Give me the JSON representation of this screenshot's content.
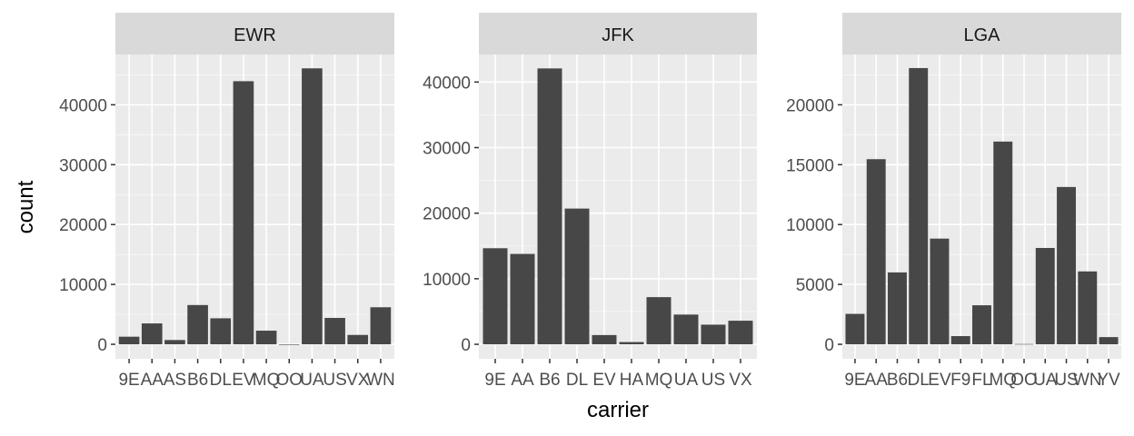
{
  "figure": {
    "xlabel": "carrier",
    "ylabel": "count"
  },
  "colors": {
    "bar": "#474747",
    "panel_bg": "#ebebeb",
    "strip_bg": "#d9d9d9",
    "grid_major": "#ffffff",
    "text": "#1a1a1a",
    "tick_text": "#4d4d4d"
  },
  "chart_data": [
    {
      "type": "bar",
      "facet": "EWR",
      "categories": [
        "9E",
        "AA",
        "AS",
        "B6",
        "DL",
        "EV",
        "MQ",
        "OO",
        "UA",
        "US",
        "VX",
        "WN"
      ],
      "values": [
        1268,
        3487,
        714,
        6557,
        4342,
        43939,
        2276,
        6,
        46087,
        4405,
        1566,
        6188
      ],
      "ylim": [
        0,
        48400
      ],
      "yticks": [
        0,
        10000,
        20000,
        30000,
        40000
      ],
      "ytick_labels": [
        "0",
        "10000",
        "20000",
        "30000",
        "40000"
      ]
    },
    {
      "type": "bar",
      "facet": "JFK",
      "categories": [
        "9E",
        "AA",
        "B6",
        "DL",
        "EV",
        "HA",
        "MQ",
        "UA",
        "US",
        "VX"
      ],
      "values": [
        14651,
        13783,
        42076,
        20701,
        1408,
        342,
        7193,
        4534,
        2995,
        3596
      ],
      "ylim": [
        0,
        44200
      ],
      "yticks": [
        0,
        10000,
        20000,
        30000,
        40000
      ],
      "ytick_labels": [
        "0",
        "10000",
        "20000",
        "30000",
        "40000"
      ]
    },
    {
      "type": "bar",
      "facet": "LGA",
      "categories": [
        "9E",
        "AA",
        "B6",
        "DL",
        "EV",
        "F9",
        "FL",
        "MQ",
        "OO",
        "UA",
        "US",
        "WN",
        "YV"
      ],
      "values": [
        2541,
        15459,
        6002,
        23067,
        8826,
        685,
        3260,
        16928,
        26,
        8044,
        13136,
        6087,
        601
      ],
      "ylim": [
        0,
        24200
      ],
      "yticks": [
        0,
        5000,
        10000,
        15000,
        20000
      ],
      "ytick_labels": [
        "0",
        "5000",
        "10000",
        "15000",
        "20000"
      ]
    }
  ]
}
